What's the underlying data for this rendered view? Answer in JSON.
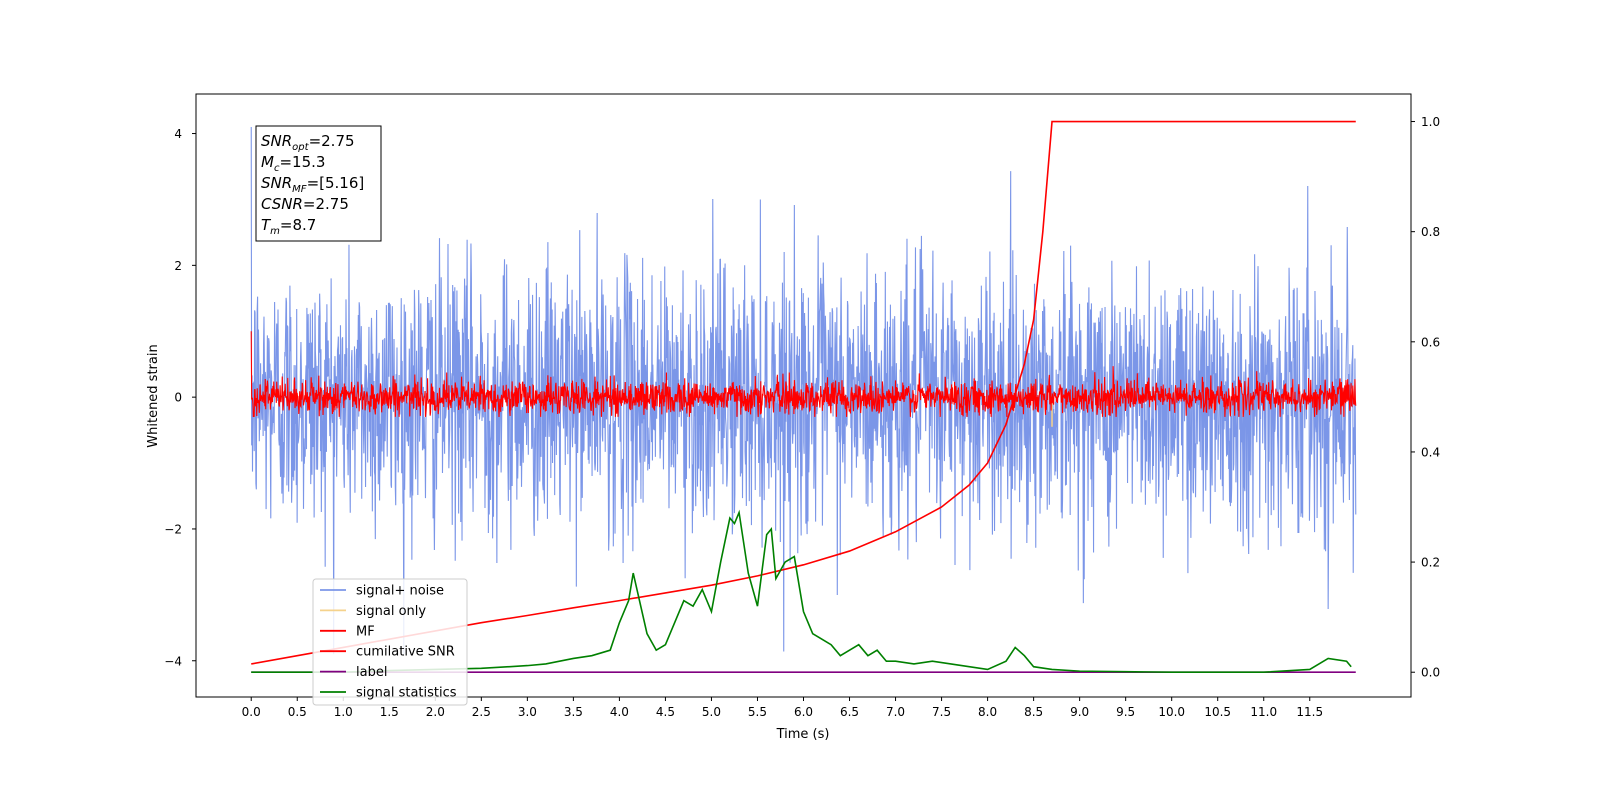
{
  "chart_data": {
    "type": "line",
    "xlabel": "Time (s)",
    "ylabel_left": "Whitened strain",
    "ylabel_right": "",
    "xlim": [
      -0.6,
      12.6
    ],
    "ylim_left": [
      -4.55,
      4.6
    ],
    "ylim_right": [
      -0.045,
      1.05
    ],
    "x_ticks": [
      0.0,
      0.5,
      1.0,
      1.5,
      2.0,
      2.5,
      3.0,
      3.5,
      4.0,
      4.5,
      5.0,
      5.5,
      6.0,
      6.5,
      7.0,
      7.5,
      8.0,
      8.5,
      9.0,
      9.5,
      10.0,
      10.5,
      11.0,
      11.5
    ],
    "x_tick_labels": [
      "0.0",
      "0.5",
      "1.0",
      "1.5",
      "2.0",
      "2.5",
      "3.0",
      "3.5",
      "4.0",
      "4.5",
      "5.0",
      "5.5",
      "6.0",
      "6.5",
      "7.0",
      "7.5",
      "8.0",
      "8.5",
      "9.0",
      "9.5",
      "10.0",
      "10.5",
      "11.0",
      "11.5"
    ],
    "y_left_ticks": [
      -4,
      -2,
      0,
      2,
      4
    ],
    "y_left_tick_labels": [
      "−4",
      "−2",
      "0",
      "2",
      "4"
    ],
    "y_right_ticks": [
      0.0,
      0.2,
      0.4,
      0.6,
      0.8,
      1.0
    ],
    "y_right_tick_labels": [
      "0.0",
      "0.2",
      "0.4",
      "0.6",
      "0.8",
      "1.0"
    ],
    "grid": false,
    "legend_position": "lower-left",
    "annotation_lines": [
      {
        "sym": "SNR",
        "sub": "opt",
        "value": "=2.75"
      },
      {
        "sym": "M",
        "sub": "c",
        "value": "=15.3"
      },
      {
        "sym": "SNR",
        "sub": "MF",
        "value": "=[5.16]"
      },
      {
        "sym": "CSNR",
        "sub": "",
        "value": "=2.75"
      },
      {
        "sym": "T",
        "sub": "m",
        "value": "=8.7"
      }
    ],
    "series": [
      {
        "name": "signal+ noise",
        "axis": "left",
        "color": "#7b96e8",
        "kind": "noise",
        "x_range": [
          0.0,
          12.0
        ],
        "amplitude": 1.0,
        "range": [
          -3.9,
          4.1
        ]
      },
      {
        "name": "signal only",
        "axis": "left",
        "color": "#f5d28c",
        "kind": "spike",
        "x": 8.7,
        "range": [
          -0.45,
          0.0
        ]
      },
      {
        "name": "MF",
        "axis": "left",
        "color": "#ff0000",
        "kind": "noise",
        "x_range": [
          0.0,
          12.0
        ],
        "amplitude": 0.13,
        "range": [
          -0.3,
          1.0
        ]
      },
      {
        "name": "cumilative SNR",
        "axis": "right",
        "color": "#ff0000",
        "kind": "line",
        "x": [
          0.0,
          0.5,
          1.0,
          1.5,
          2.0,
          2.5,
          3.0,
          3.5,
          4.0,
          4.5,
          5.0,
          5.5,
          6.0,
          6.5,
          7.0,
          7.5,
          7.8,
          8.0,
          8.2,
          8.4,
          8.5,
          8.6,
          8.7,
          12.0
        ],
        "y": [
          0.015,
          0.03,
          0.045,
          0.06,
          0.075,
          0.09,
          0.103,
          0.117,
          0.13,
          0.144,
          0.158,
          0.175,
          0.195,
          0.22,
          0.255,
          0.3,
          0.34,
          0.38,
          0.45,
          0.56,
          0.64,
          0.8,
          1.0,
          1.0
        ]
      },
      {
        "name": "label",
        "axis": "right",
        "color": "#800080",
        "kind": "line",
        "x": [
          0.0,
          12.0
        ],
        "y": [
          0.0,
          0.0
        ]
      },
      {
        "name": "signal statistics",
        "axis": "right",
        "color": "#008000",
        "kind": "line",
        "x": [
          0.0,
          0.5,
          1.0,
          1.5,
          2.0,
          2.5,
          3.0,
          3.2,
          3.5,
          3.7,
          3.8,
          3.9,
          4.0,
          4.1,
          4.15,
          4.3,
          4.4,
          4.5,
          4.6,
          4.7,
          4.8,
          4.9,
          5.0,
          5.1,
          5.2,
          5.25,
          5.3,
          5.4,
          5.5,
          5.6,
          5.65,
          5.7,
          5.8,
          5.9,
          6.0,
          6.1,
          6.2,
          6.3,
          6.4,
          6.5,
          6.6,
          6.7,
          6.8,
          6.9,
          7.0,
          7.2,
          7.4,
          7.6,
          7.8,
          8.0,
          8.2,
          8.3,
          8.4,
          8.5,
          8.7,
          9.0,
          9.5,
          10.0,
          10.5,
          11.0,
          11.5,
          11.7,
          11.9,
          11.95
        ],
        "y": [
          0.0,
          0.0,
          0.0,
          0.003,
          0.005,
          0.007,
          0.012,
          0.015,
          0.025,
          0.03,
          0.035,
          0.04,
          0.09,
          0.13,
          0.18,
          0.07,
          0.04,
          0.05,
          0.09,
          0.13,
          0.12,
          0.15,
          0.11,
          0.2,
          0.28,
          0.27,
          0.29,
          0.18,
          0.12,
          0.25,
          0.26,
          0.17,
          0.2,
          0.21,
          0.11,
          0.07,
          0.06,
          0.05,
          0.03,
          0.04,
          0.05,
          0.03,
          0.04,
          0.02,
          0.02,
          0.015,
          0.02,
          0.015,
          0.01,
          0.005,
          0.02,
          0.045,
          0.03,
          0.01,
          0.005,
          0.002,
          0.001,
          0.0,
          0.0,
          0.0,
          0.005,
          0.025,
          0.02,
          0.01
        ]
      }
    ]
  }
}
